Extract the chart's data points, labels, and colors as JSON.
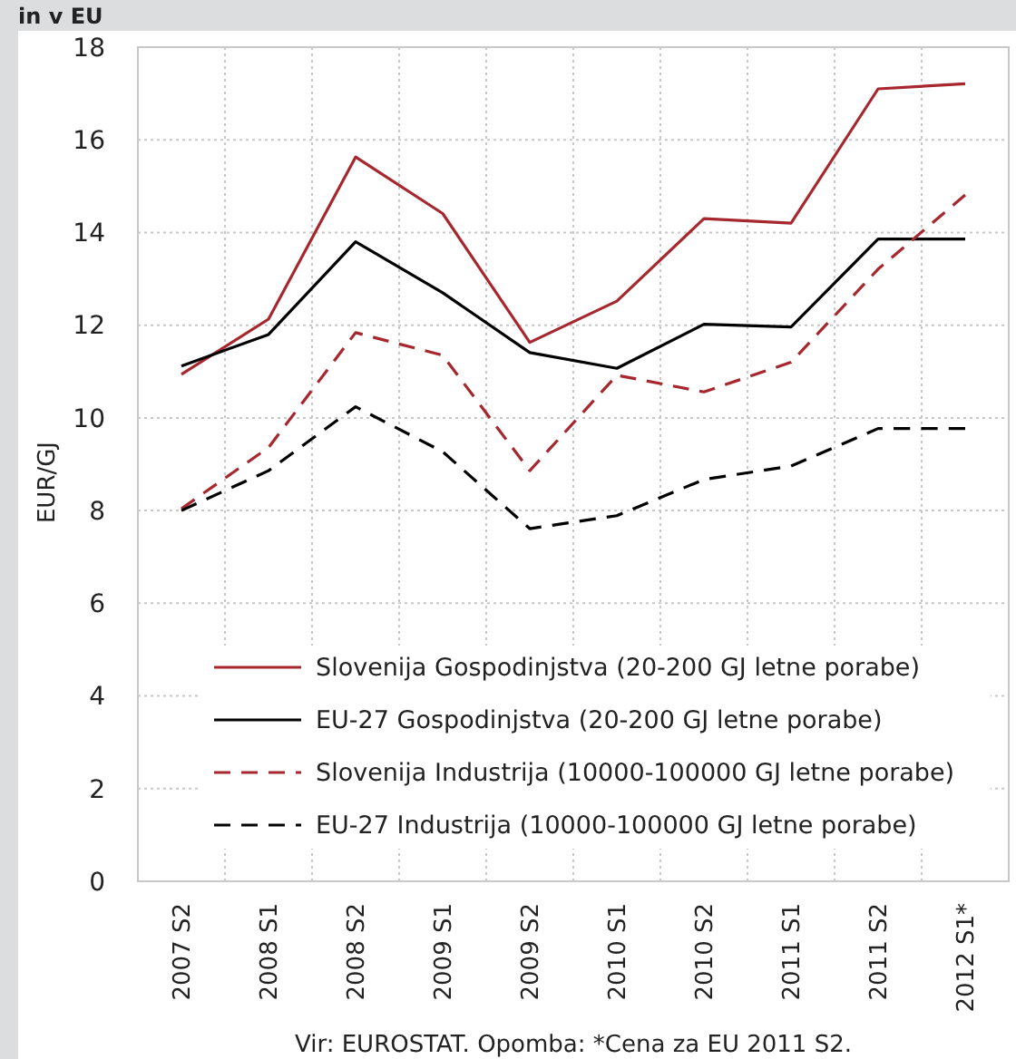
{
  "chart_data": {
    "type": "line",
    "title": "in v EU",
    "ylabel": "EUR/GJ",
    "categories": [
      "2007 S2",
      "2008 S1",
      "2008 S2",
      "2009 S1",
      "2009 S2",
      "2010 S1",
      "2010 S2",
      "2011 S1",
      "2011 S2",
      "2012 S1*"
    ],
    "series": [
      {
        "name": "Slovenija Gospodinjstva (20-200 GJ letne porabe)",
        "color": "#a6282e",
        "line_style": "solid",
        "values": [
          10.94,
          12.13,
          15.63,
          14.41,
          11.63,
          12.52,
          14.3,
          14.2,
          17.1,
          17.21
        ]
      },
      {
        "name": "EU-27 Gospodinjstva (20-200 GJ letne porabe)",
        "color": "#000000",
        "line_style": "solid",
        "values": [
          11.12,
          11.8,
          13.8,
          12.7,
          11.41,
          11.07,
          12.02,
          11.96,
          13.86,
          13.86
        ]
      },
      {
        "name": "Slovenija Industrija (10000-100000 GJ letne porabe)",
        "color": "#a6282e",
        "line_style": "dashed",
        "values": [
          8.04,
          9.36,
          11.84,
          11.35,
          8.86,
          10.92,
          10.56,
          11.2,
          13.21,
          14.81
        ]
      },
      {
        "name": "EU-27 Industrija (10000-100000 GJ letne porabe)",
        "color": "#000000",
        "line_style": "dashed",
        "values": [
          8.0,
          8.86,
          10.24,
          9.27,
          7.61,
          7.89,
          8.67,
          8.96,
          9.77,
          9.77
        ]
      }
    ],
    "ylim": [
      0,
      18
    ],
    "yticks": [
      0,
      2,
      4,
      6,
      8,
      10,
      12,
      14,
      16,
      18
    ],
    "grid": true,
    "legend": "bottom",
    "marker": "none",
    "annotations": [
      "Vir: EUROSTAT. Opomba: *Cena za EU 2011 S2."
    ]
  }
}
